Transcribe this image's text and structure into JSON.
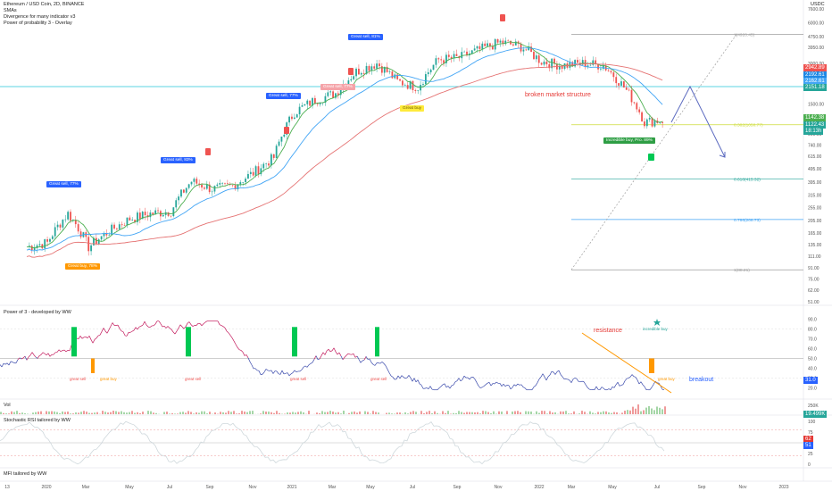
{
  "header": {
    "symbol": "Ethereum / USD Coin, 2D, BINANCE",
    "indicators": [
      "SMAs",
      "Divergence for many indicator v3",
      "Power of probability 3 - Overlay"
    ],
    "currency": "USDC"
  },
  "colors": {
    "bull": "#26a69a",
    "bear": "#ef5350",
    "sma_fast": "#4caf50",
    "sma_mid": "#42a5f5",
    "sma_slow": "#e57373",
    "power": "#7b61c9",
    "accent_blue": "#2962ff"
  },
  "price_axis": [
    "7600.00",
    "6000.00",
    "4750.00",
    "3950.00",
    "3000.00",
    "2450.00",
    "1950.00",
    "1500.00",
    "1200.00",
    "900.00",
    "740.00",
    "615.00",
    "495.00",
    "395.00",
    "315.00",
    "255.00",
    "205.00",
    "165.00",
    "135.00",
    "111.00",
    "91.00",
    "75.00",
    "62.00",
    "51.00"
  ],
  "price_tags": [
    {
      "text": "2942.89",
      "color": "#ef5350"
    },
    {
      "text": "2192.61",
      "color": "#1e88e5"
    },
    {
      "text": "2162.61",
      "color": "#42a5f5"
    },
    {
      "text": "2151.18",
      "color": "#26a69a"
    },
    {
      "text": "1142.38",
      "color": "#4caf50"
    },
    {
      "text": "1122.43",
      "color": "#26a69a"
    },
    {
      "text": "18:13h",
      "color": "#26a69a"
    }
  ],
  "fib_labels": [
    "1(4920.45)",
    "0.382(1050.77)",
    "0.618(415.32)",
    "0.786(208.73)",
    "1(88.21)"
  ],
  "signals": [
    {
      "text": "Great sell, 77%",
      "color": "blue"
    },
    {
      "text": "Great sell, 83%",
      "color": "blue"
    },
    {
      "text": "Great sell, 77%",
      "color": "blue"
    },
    {
      "text": "Great sell, 81%",
      "color": "blue"
    },
    {
      "text": "Great buy, 78%",
      "color": "orange"
    },
    {
      "text": "Great buy",
      "color": "yellow"
    },
    {
      "text": "Great sell, 77%",
      "color": "pink"
    },
    {
      "text": "Incredible buy, Pro. 89%",
      "color": "green"
    }
  ],
  "annotations": {
    "structure": "broken market structure",
    "resistance": "resistance",
    "breakout": "breakout"
  },
  "panes": {
    "power": {
      "title": "Power of 3 - developed by WW",
      "axis": [
        "90.0",
        "80.0",
        "70.0",
        "60.0",
        "50.0",
        "40.0",
        "30.0",
        "20.0"
      ],
      "current": "31.0",
      "labels": [
        "great sell",
        "great buy",
        "great sell",
        "great sell",
        "great sell",
        "great sell",
        "great buy",
        "incredible buy"
      ]
    },
    "vol": {
      "title": "Vol",
      "axis": [
        "250K"
      ],
      "current": "19.499K"
    },
    "stoch": {
      "title": "Stochastic RSI tailored by WW",
      "axis": [
        "100",
        "75",
        "50",
        "25",
        "0"
      ],
      "current": [
        "62",
        "51"
      ]
    },
    "mfi": {
      "title": "MFI tailored by WW"
    }
  },
  "time_axis": [
    "13",
    "2020",
    "Mar",
    "May",
    "Jul",
    "Sep",
    "Nov",
    "2021",
    "Mar",
    "May",
    "Jul",
    "Sep",
    "Nov",
    "2022",
    "Mar",
    "May",
    "Jul",
    "Sep",
    "Nov",
    "2023"
  ],
  "chart_data": {
    "type": "line",
    "title": "Ethereum / USD Coin, 2D, BINANCE",
    "x": [
      "2019-12",
      "2020-01",
      "2020-02",
      "2020-03",
      "2020-04",
      "2020-05",
      "2020-06",
      "2020-07",
      "2020-08",
      "2020-09",
      "2020-10",
      "2020-11",
      "2020-12",
      "2021-01",
      "2021-02",
      "2021-03",
      "2021-04",
      "2021-05",
      "2021-06",
      "2021-07",
      "2021-08",
      "2021-09",
      "2021-10",
      "2021-11",
      "2021-12",
      "2022-01",
      "2022-02",
      "2022-03",
      "2022-04",
      "2022-05",
      "2022-06",
      "2022-07"
    ],
    "series": [
      {
        "values": [
          130,
          140,
          230,
          130,
          170,
          210,
          230,
          240,
          400,
          350,
          370,
          460,
          600,
          1300,
          1600,
          1800,
          2600,
          3000,
          2200,
          2000,
          3200,
          3300,
          3800,
          4300,
          4000,
          3100,
          2900,
          3000,
          2900,
          2000,
          1100,
          1140
        ]
      }
    ],
    "ylim": [
      51,
      7600
    ],
    "yscale": "log"
  }
}
